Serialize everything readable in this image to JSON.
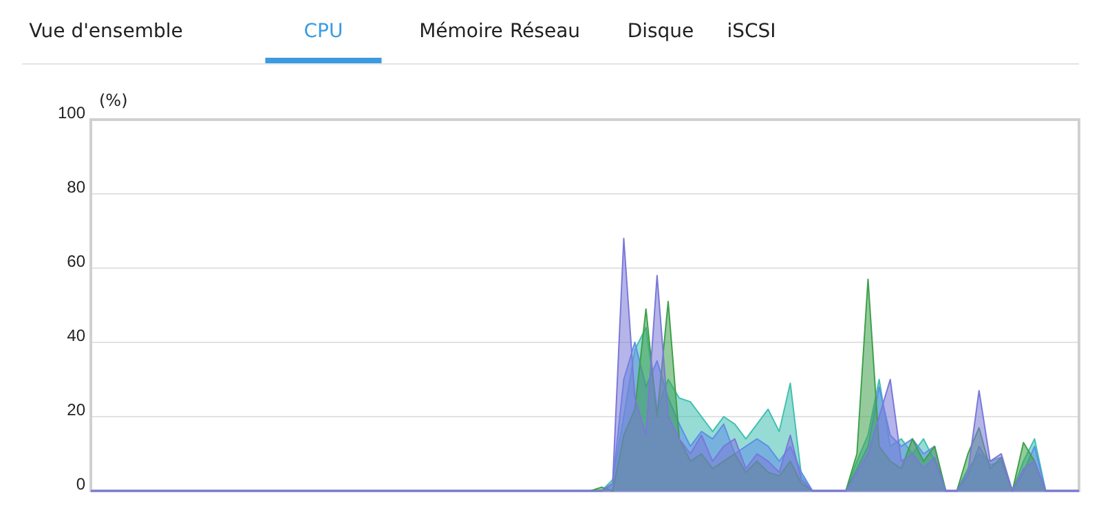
{
  "chart_data": {
    "type": "area",
    "ylabel": "(%)",
    "annotations": [
      "Vue d'ensemble",
      "CPU",
      "Mémoire",
      "Réseau",
      "Disque",
      "iSCSI"
    ],
    "categories": [
      null,
      null,
      null,
      null,
      null,
      null,
      null,
      null,
      null,
      null,
      null,
      null,
      null,
      null,
      null,
      null,
      null,
      null,
      null,
      null,
      null,
      null,
      null,
      null,
      null,
      null,
      null,
      null,
      null,
      null,
      null,
      null,
      null,
      null,
      null,
      null,
      null,
      null,
      null,
      null,
      null,
      null,
      null,
      null,
      null,
      null,
      null,
      null,
      null,
      null,
      null,
      null,
      null,
      null,
      null,
      null,
      null,
      null,
      null,
      null,
      null,
      null,
      null,
      null,
      null,
      null,
      null,
      null,
      null,
      null,
      null,
      null,
      null,
      null,
      null,
      null,
      null,
      null,
      null,
      null,
      null,
      null,
      null,
      null,
      null,
      null,
      null,
      null,
      null,
      null
    ],
    "ylim": [
      0,
      100
    ],
    "yticks": [
      0,
      20,
      40,
      60,
      80,
      100
    ],
    "grid": "y",
    "series": [
      {
        "color": "#40c0b0",
        "values": [
          0,
          0,
          0,
          0,
          0,
          0,
          0,
          0,
          0,
          0,
          0,
          0,
          0,
          0,
          0,
          0,
          0,
          0,
          0,
          0,
          0,
          0,
          0,
          0,
          0,
          0,
          0,
          0,
          0,
          0,
          0,
          0,
          0,
          0,
          0,
          0,
          0,
          0,
          0,
          0,
          0,
          0,
          0,
          0,
          0,
          0,
          0,
          3,
          20,
          38,
          44,
          22,
          30,
          25,
          24,
          20,
          16,
          20,
          18,
          14,
          18,
          22,
          16,
          29,
          4,
          0,
          0,
          0,
          0,
          8,
          15,
          30,
          12,
          14,
          10,
          14,
          8,
          0,
          0,
          6,
          10,
          8,
          9,
          0,
          8,
          14,
          0,
          0,
          0,
          0
        ]
      },
      {
        "color": "#5f8fe8",
        "values": [
          0,
          0,
          0,
          0,
          0,
          0,
          0,
          0,
          0,
          0,
          0,
          0,
          0,
          0,
          0,
          0,
          0,
          0,
          0,
          0,
          0,
          0,
          0,
          0,
          0,
          0,
          0,
          0,
          0,
          0,
          0,
          0,
          0,
          0,
          0,
          0,
          0,
          0,
          0,
          0,
          0,
          0,
          0,
          0,
          0,
          0,
          0,
          2,
          30,
          40,
          28,
          35,
          25,
          18,
          12,
          16,
          14,
          18,
          10,
          12,
          14,
          12,
          8,
          12,
          5,
          0,
          0,
          0,
          0,
          6,
          12,
          28,
          15,
          12,
          14,
          10,
          12,
          0,
          0,
          4,
          12,
          7,
          8,
          0,
          5,
          12,
          0,
          0,
          0,
          0
        ]
      },
      {
        "color": "#3ea04a",
        "values": [
          0,
          0,
          0,
          0,
          0,
          0,
          0,
          0,
          0,
          0,
          0,
          0,
          0,
          0,
          0,
          0,
          0,
          0,
          0,
          0,
          0,
          0,
          0,
          0,
          0,
          0,
          0,
          0,
          0,
          0,
          0,
          0,
          0,
          0,
          0,
          0,
          0,
          0,
          0,
          0,
          0,
          0,
          0,
          0,
          0,
          0,
          1,
          0,
          15,
          22,
          49,
          20,
          51,
          14,
          8,
          10,
          6,
          8,
          10,
          5,
          8,
          5,
          4,
          8,
          2,
          0,
          0,
          0,
          0,
          10,
          57,
          12,
          8,
          6,
          14,
          8,
          12,
          0,
          0,
          10,
          17,
          6,
          9,
          0,
          13,
          8,
          0,
          0,
          0,
          0
        ]
      },
      {
        "color": "#7a78d8",
        "values": [
          0,
          0,
          0,
          0,
          0,
          0,
          0,
          0,
          0,
          0,
          0,
          0,
          0,
          0,
          0,
          0,
          0,
          0,
          0,
          0,
          0,
          0,
          0,
          0,
          0,
          0,
          0,
          0,
          0,
          0,
          0,
          0,
          0,
          0,
          0,
          0,
          0,
          0,
          0,
          0,
          0,
          0,
          0,
          0,
          0,
          0,
          0,
          2,
          68,
          25,
          15,
          58,
          20,
          14,
          10,
          15,
          8,
          12,
          14,
          6,
          10,
          8,
          5,
          15,
          3,
          0,
          0,
          0,
          0,
          5,
          10,
          20,
          30,
          8,
          10,
          6,
          9,
          0,
          0,
          5,
          27,
          8,
          10,
          0,
          6,
          8,
          0,
          0,
          0,
          0
        ]
      }
    ]
  }
}
